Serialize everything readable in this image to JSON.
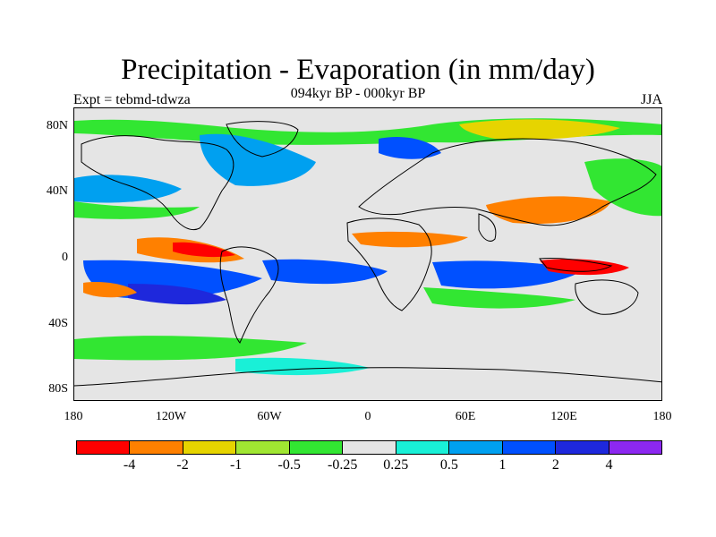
{
  "title": "Precipitation - Evaporation (in mm/day)",
  "subtitle": "094kyr BP - 000kyr BP",
  "left_label": "Expt = tebmd-tdwza",
  "right_label": "JJA",
  "lat_labels": [
    "80N",
    "40N",
    "0",
    "40S",
    "80S"
  ],
  "lon_labels": [
    "180",
    "120W",
    "60W",
    "0",
    "60E",
    "120E",
    "180"
  ],
  "colorbar": {
    "colors": [
      "#ff0000",
      "#ff8000",
      "#e6d400",
      "#a0e632",
      "#32e632",
      "#e5e5e5",
      "#19f0d7",
      "#00a0f0",
      "#0050ff",
      "#1e28dc",
      "#8c28f0"
    ],
    "labels": [
      "-4",
      "-2",
      "-1",
      "-0.5",
      "-0.25",
      "0.25",
      "0.5",
      "1",
      "2",
      "4"
    ]
  },
  "map": {
    "ocean_background": "#e5e5e5",
    "coastline_color": "#000000"
  }
}
